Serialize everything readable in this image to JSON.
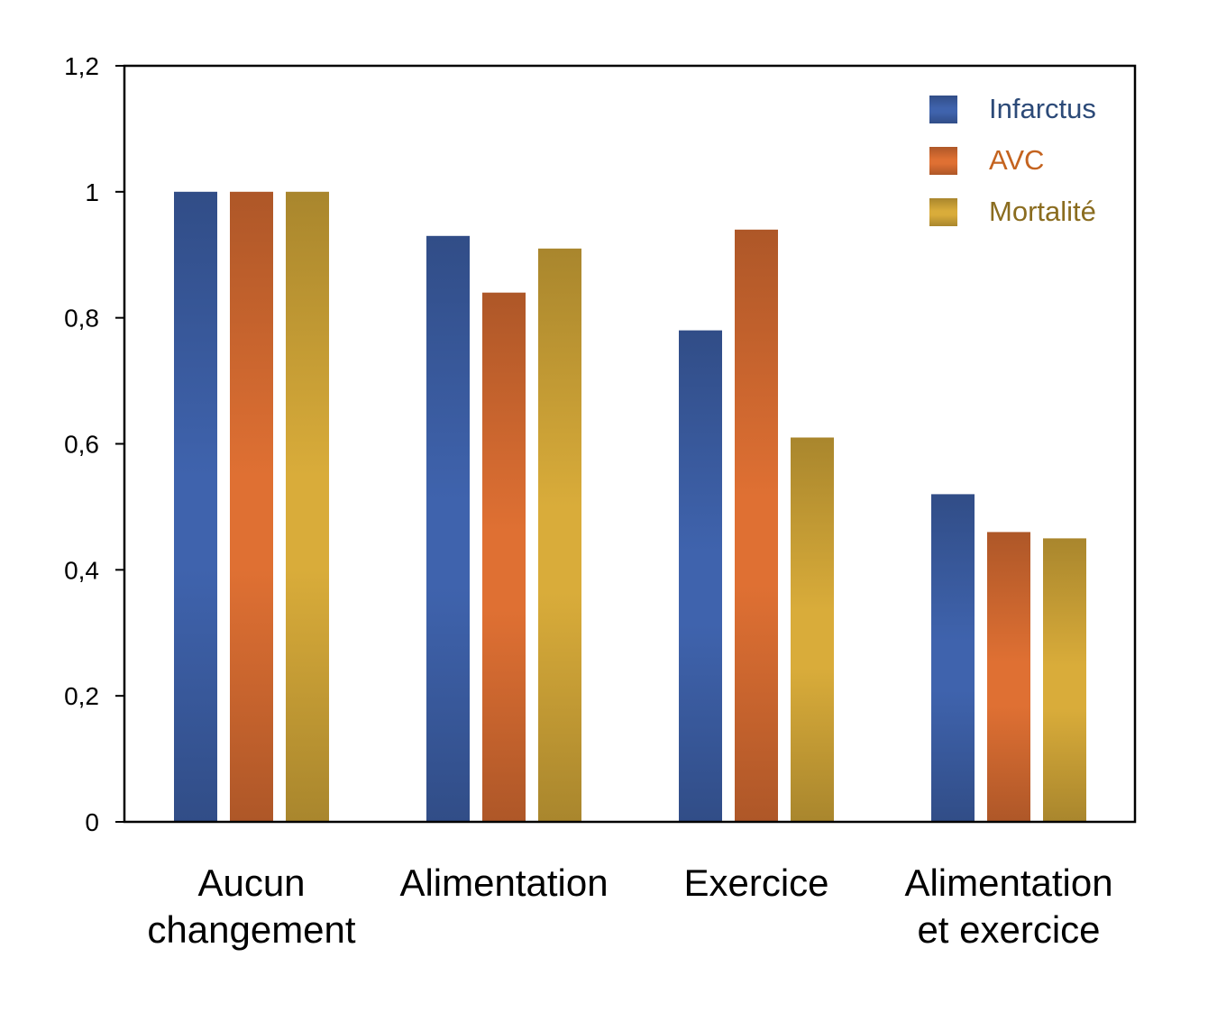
{
  "chart_data": {
    "type": "bar",
    "categories": [
      [
        "Aucun",
        "changement"
      ],
      [
        "Alimentation"
      ],
      [
        "Exercice"
      ],
      [
        "Alimentation",
        "et exercice"
      ]
    ],
    "series": [
      {
        "name": "Infarctus",
        "color": "#3f63ad",
        "text_color": "#2c4a78",
        "values": [
          1.0,
          0.93,
          0.78,
          0.52
        ]
      },
      {
        "name": "AVC",
        "color": "#df7033",
        "text_color": "#c4631f",
        "values": [
          1.0,
          0.84,
          0.94,
          0.46
        ]
      },
      {
        "name": "Mortalité",
        "color": "#d9ac3a",
        "text_color": "#8a6c1f",
        "values": [
          1.0,
          0.91,
          0.61,
          0.45
        ]
      }
    ],
    "yticks": [
      "0",
      "0,2",
      "0,4",
      "0,6",
      "0,8",
      "1",
      "1,2"
    ],
    "ylim": [
      0,
      1.2
    ],
    "title": "",
    "xlabel": "",
    "ylabel": "",
    "grid": false,
    "legend_position": "top-right"
  }
}
